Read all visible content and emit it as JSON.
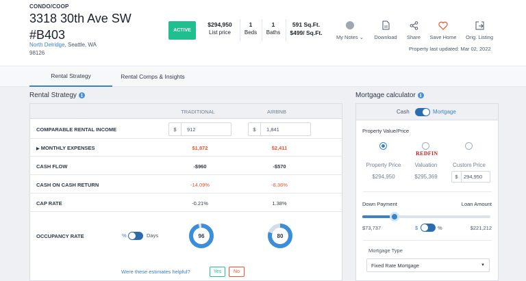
{
  "property": {
    "type": "CONDO/COOP",
    "address_line1": "3318 30th Ave SW",
    "address_line2": "#B403",
    "neighborhood": "North Delridge",
    "city_state": ", Seattle, WA",
    "zip": "98126",
    "status": "ACTIVE",
    "list_price": "$294,950",
    "list_price_label": "List price",
    "beds": "1",
    "beds_label": "Beds",
    "baths": "1",
    "baths_label": "Baths",
    "sqft": "591 Sq.Ft.",
    "price_per_sqft": "$499/ Sq.Ft."
  },
  "actions": {
    "my_notes": "My Notes",
    "download": "Download",
    "share": "Share",
    "save_home": "Save Home",
    "orig_listing": "Orig. Listing",
    "updated": "Property last updated: Mar 02, 2022"
  },
  "tabs": [
    {
      "label": "Rental Strategy",
      "active": true
    },
    {
      "label": "Rental Comps & Insights",
      "active": false
    }
  ],
  "rental": {
    "title": "Rental Strategy",
    "col_traditional": "TRADITIONAL",
    "col_airbnb": "AIRBNB",
    "rows": {
      "income": {
        "label": "COMPARABLE RENTAL INCOME",
        "trad": "912",
        "air": "1,841",
        "prefix": "$"
      },
      "expenses": {
        "label": "MONTHLY EXPENSES",
        "trad": "$1,872",
        "air": "$2,411"
      },
      "cashflow": {
        "label": "CASH FLOW",
        "trad": "-$960",
        "air": "-$570"
      },
      "coc": {
        "label": "CASH ON CASH RETURN",
        "trad": "-14.09%",
        "air": "-8.36%"
      },
      "cap": {
        "label": "CAP RATE",
        "trad": "-0.21%",
        "air": "1.38%"
      },
      "occupancy": {
        "label": "OCCUPANCY RATE",
        "pct_label": "%",
        "days_label": "Days",
        "trad": "96",
        "air": "80"
      }
    },
    "helpful_q": "Were these estimates helpful?",
    "yes": "Yes",
    "no": "No"
  },
  "mortgage": {
    "title": "Mortgage calculator",
    "cash": "Cash",
    "mortgage": "Mortgage",
    "value_heading": "Property Value/Price",
    "options": [
      {
        "label": "Property Price",
        "value": "$294,950",
        "selected": true
      },
      {
        "label": "Valuation",
        "value": "$295,369",
        "selected": false,
        "brand": "REDFIN"
      },
      {
        "label": "Custom Price",
        "value": "294,950",
        "prefix": "$",
        "selected": false
      }
    ],
    "down_payment_label": "Down Payment",
    "loan_amount_label": "Loan Amount",
    "down_payment": "$73,737",
    "loan_amount": "$221,212",
    "down_payment_fraction": 0.25,
    "dollar_sym": "$",
    "pct_sym": "%",
    "type_label": "Mortgage Type",
    "type_value": "Fixed Rate Mortgage"
  },
  "colors": {
    "accent": "#3b82c4",
    "active_badge": "#1fbf8f",
    "negative": "#e4572e",
    "redfin": "#c82021"
  }
}
